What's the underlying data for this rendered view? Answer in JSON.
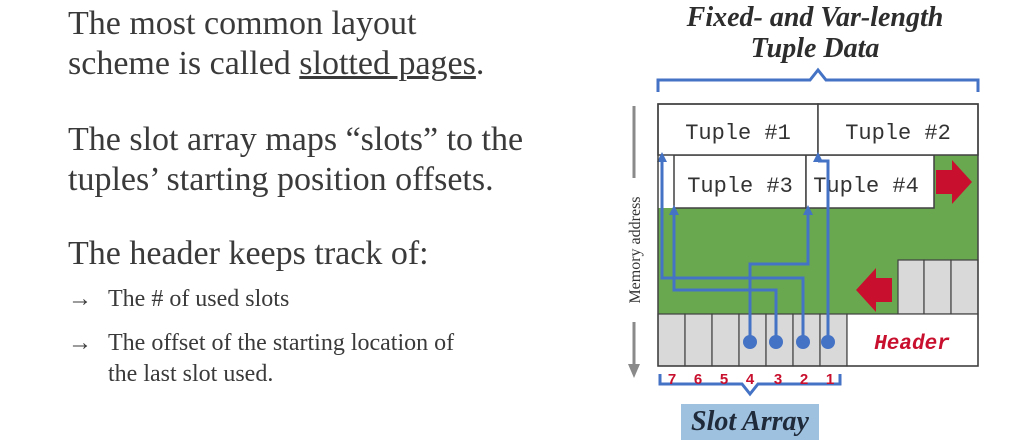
{
  "text": {
    "para1_before": "The most common layout",
    "para1_line2": "scheme is called ",
    "para1_link": "slotted pages",
    "para1_after": ".",
    "para2_line1": "The slot array maps “slots” to the",
    "para2_line2": "tuples’ starting position offsets.",
    "para3": "The header keeps track of:",
    "bullet_marker": "→",
    "bullets": [
      {
        "lines": [
          "The # of used slots"
        ]
      },
      {
        "lines": [
          "The offset of the starting location of",
          "the last slot used."
        ]
      }
    ]
  },
  "diagram": {
    "title_line1": "Fixed- and Var-length",
    "title_line2": "Tuple Data",
    "tuples": [
      "Tuple #1",
      "Tuple #2",
      "Tuple #3",
      "Tuple #4"
    ],
    "header_label": "Header",
    "slot_numbers": [
      "7",
      "6",
      "5",
      "4",
      "3",
      "2",
      "1"
    ],
    "slot_array_label": "Slot Array",
    "memory_axis_label": "Memory address",
    "colors": {
      "free_space": "#6aa84f",
      "pointer": "#4472c4",
      "growth_arrow": "#c8102e",
      "slot_fill": "#d9d9d9",
      "header_text": "#c8102e",
      "slot_number_text": "#c8102e"
    }
  }
}
